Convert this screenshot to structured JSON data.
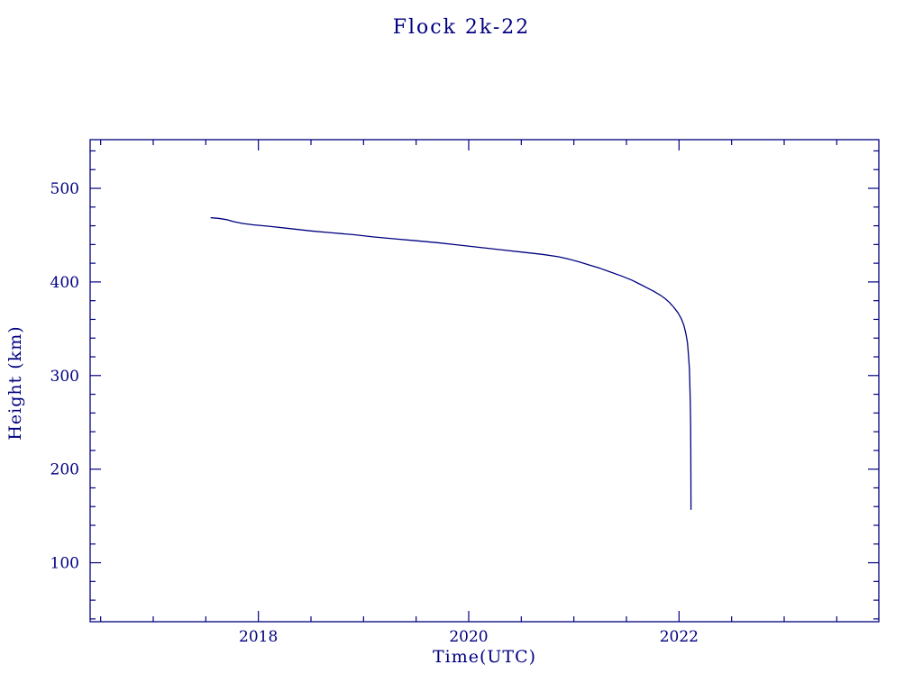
{
  "page": {
    "background": "#ffffff"
  },
  "chart_data": {
    "type": "line",
    "title": "Flock 2k-22",
    "xlabel": "Time(UTC)",
    "ylabel": "Height (km)",
    "x_tick_labels": [
      "2018",
      "2020",
      "2022"
    ],
    "y_tick_labels": [
      "100",
      "200",
      "300",
      "400",
      "500"
    ],
    "xlim": [
      2016.4,
      2023.9
    ],
    "ylim": [
      37,
      552
    ],
    "x_major_ticks": [
      2018,
      2020,
      2022
    ],
    "x_minor_step": 0.5,
    "y_major_ticks": [
      100,
      200,
      300,
      400,
      500
    ],
    "y_minor_step": 20,
    "grid": false,
    "legend": "none",
    "axis_color": "#000080",
    "line_color": "#000080",
    "series": [
      {
        "name": "Flock 2k-22 orbital height",
        "points": [
          [
            2017.55,
            468.5
          ],
          [
            2017.62,
            468.0
          ],
          [
            2017.7,
            466.5
          ],
          [
            2017.76,
            464.5
          ],
          [
            2017.85,
            462.5
          ],
          [
            2017.95,
            461.0
          ],
          [
            2018.1,
            459.5
          ],
          [
            2018.3,
            457.0
          ],
          [
            2018.5,
            454.5
          ],
          [
            2018.7,
            452.5
          ],
          [
            2018.9,
            450.5
          ],
          [
            2019.1,
            448.0
          ],
          [
            2019.3,
            446.0
          ],
          [
            2019.5,
            444.0
          ],
          [
            2019.7,
            442.0
          ],
          [
            2019.9,
            439.5
          ],
          [
            2020.1,
            437.0
          ],
          [
            2020.3,
            434.5
          ],
          [
            2020.5,
            432.0
          ],
          [
            2020.7,
            429.5
          ],
          [
            2020.85,
            427.0
          ],
          [
            2020.95,
            424.5
          ],
          [
            2021.05,
            421.5
          ],
          [
            2021.15,
            418.0
          ],
          [
            2021.25,
            414.5
          ],
          [
            2021.35,
            410.5
          ],
          [
            2021.45,
            406.5
          ],
          [
            2021.55,
            402.0
          ],
          [
            2021.63,
            397.5
          ],
          [
            2021.7,
            393.5
          ],
          [
            2021.76,
            390.0
          ],
          [
            2021.82,
            386.0
          ],
          [
            2021.87,
            382.0
          ],
          [
            2021.91,
            378.0
          ],
          [
            2021.95,
            373.0
          ],
          [
            2021.99,
            367.0
          ],
          [
            2022.02,
            361.0
          ],
          [
            2022.045,
            354.0
          ],
          [
            2022.065,
            345.0
          ],
          [
            2022.08,
            335.0
          ],
          [
            2022.09,
            322.0
          ],
          [
            2022.098,
            308.0
          ],
          [
            2022.103,
            292.0
          ],
          [
            2022.107,
            272.0
          ],
          [
            2022.11,
            248.0
          ],
          [
            2022.112,
            220.0
          ],
          [
            2022.113,
            190.0
          ],
          [
            2022.114,
            157.0
          ]
        ]
      }
    ]
  }
}
